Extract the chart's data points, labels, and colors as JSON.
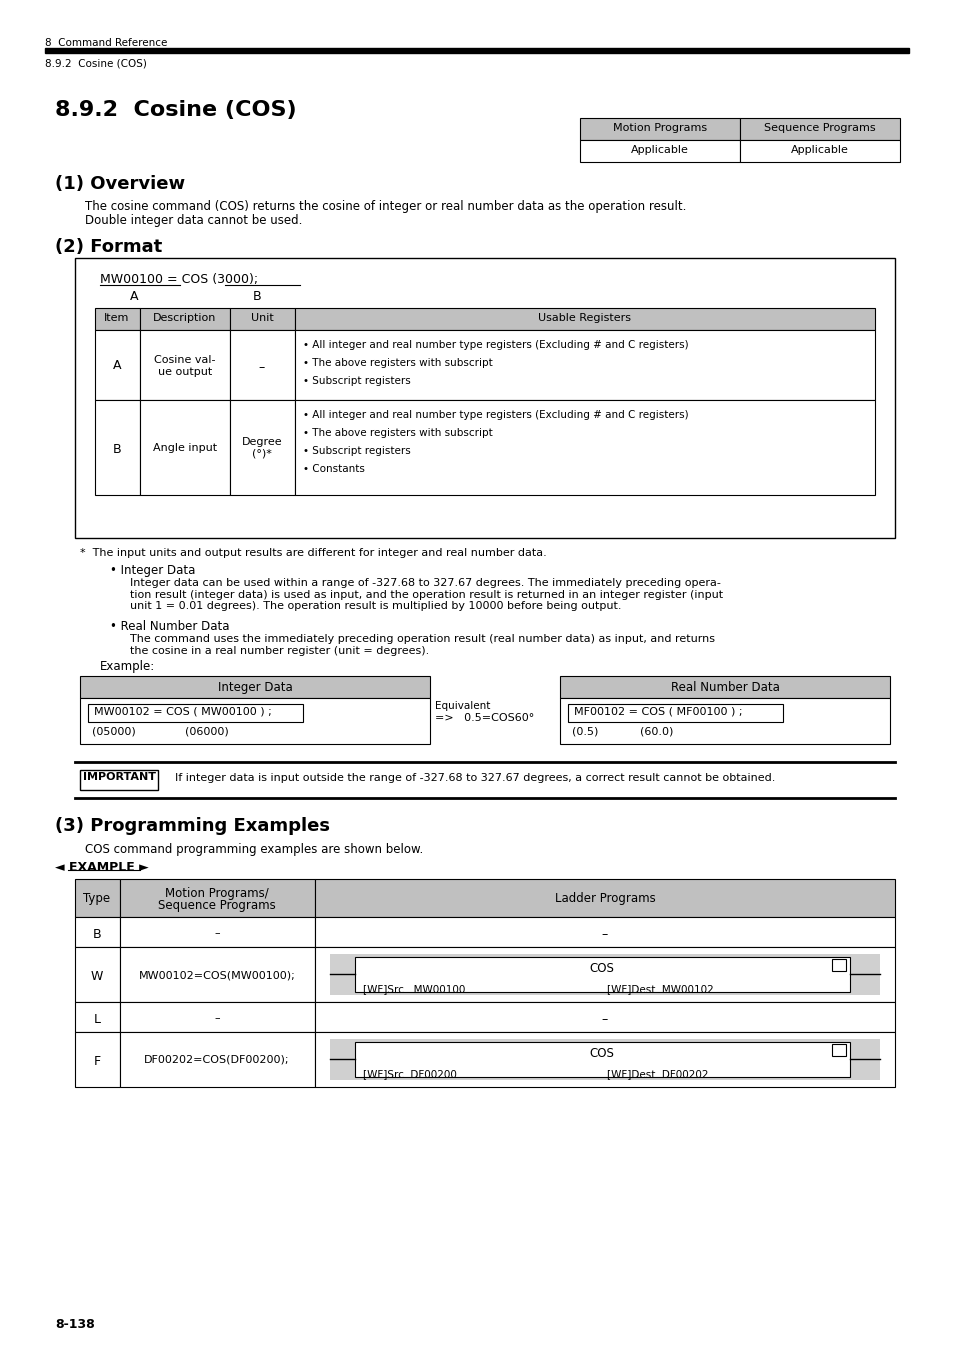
{
  "page_header_main": "8  Command Reference",
  "page_header_sub": "8.9.2  Cosine (COS)",
  "section_title": "8.9.2  Cosine (COS)",
  "table_header": [
    "Motion Programs",
    "Sequence Programs"
  ],
  "table_applicable": [
    "Applicable",
    "Applicable"
  ],
  "section1_title": "(1) Overview",
  "section1_text1": "The cosine command (COS) returns the cosine of integer or real number data as the operation result.",
  "section1_text2": "Double integer data cannot be used.",
  "section2_title": "(2) Format",
  "format_code": "MW00100 = COS (3000);",
  "format_label_a": "A",
  "format_label_b": "B",
  "format_table_headers": [
    "Item",
    "Description",
    "Unit",
    "Usable Registers"
  ],
  "format_row_a": {
    "item": "A",
    "desc": "Cosine val-\nue output",
    "unit": "–",
    "regs": [
      "• All integer and real number type registers (Excluding # and C registers)",
      "• The above registers with subscript",
      "• Subscript registers"
    ]
  },
  "format_row_b": {
    "item": "B",
    "desc": "Angle input",
    "unit": "Degree\n(°)*",
    "regs": [
      "• All integer and real number type registers (Excluding # and C registers)",
      "• The above registers with subscript",
      "• Subscript registers",
      "• Constants"
    ]
  },
  "footnote_star": "*  The input units and output results are different for integer and real number data.",
  "bullet_integer_title": "• Integer Data",
  "bullet_integer_text": "Integer data can be used within a range of -327.68 to 327.67 degrees. The immediately preceding opera-\ntion result (integer data) is used as input, and the operation result is returned in an integer register (input\nunit 1 = 0.01 degrees). The operation result is multiplied by 10000 before being output.",
  "bullet_real_title": "• Real Number Data",
  "bullet_real_text": "The command uses the immediately preceding operation result (real number data) as input, and returns\nthe cosine in a real number register (unit = degrees).",
  "example_label": "Example:",
  "example_int_header": "Integer Data",
  "example_real_header": "Real Number Data",
  "example_int_code": "MW00102 = COS ( MW00100 ) ;",
  "example_int_addr1": "(05000)",
  "example_int_addr2": "(06000)",
  "example_real_code": "MF00102 = COS ( MF00100 ) ;",
  "example_real_addr1": "(0.5)",
  "example_real_addr2": "(60.0)",
  "important_label": "IMPORTANT",
  "important_text": "If integer data is input outside the range of -327.68 to 327.67 degrees, a correct result cannot be obtained.",
  "section3_title": "(3) Programming Examples",
  "section3_text": "COS command programming examples are shown below.",
  "example_marker": "◄ EXAMPLE ►",
  "prog_rows": [
    {
      "type": "B",
      "motion": "–",
      "ladder": "–",
      "has_ladder_diagram": false
    },
    {
      "type": "W",
      "motion": "MW00102=COS(MW00100);",
      "ladder": "",
      "has_ladder_diagram": true,
      "ladder_fn": "COS",
      "ladder_src": "[WF]Src   MW00100",
      "ladder_dest": "[WF]Dest  MW00102"
    },
    {
      "type": "L",
      "motion": "–",
      "ladder": "–",
      "has_ladder_diagram": false
    },
    {
      "type": "F",
      "motion": "DF00202=COS(DF00200);",
      "ladder": "",
      "has_ladder_diagram": true,
      "ladder_fn": "COS",
      "ladder_src": "[WF]Src  DF00200",
      "ladder_dest": "[WF]Dest  DF00202"
    }
  ],
  "page_number": "8-138",
  "bg_color": "#ffffff",
  "table_header_bg": "#c0c0c0",
  "ladder_bg": "#d0d0d0"
}
